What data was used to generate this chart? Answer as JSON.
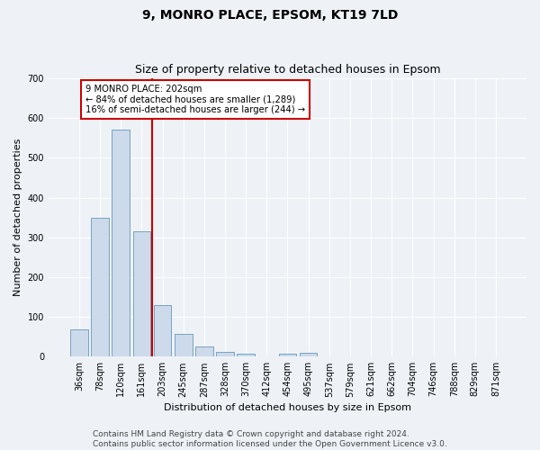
{
  "title_line1": "9, MONRO PLACE, EPSOM, KT19 7LD",
  "title_line2": "Size of property relative to detached houses in Epsom",
  "xlabel": "Distribution of detached houses by size in Epsom",
  "ylabel": "Number of detached properties",
  "categories": [
    "36sqm",
    "78sqm",
    "120sqm",
    "161sqm",
    "203sqm",
    "245sqm",
    "287sqm",
    "328sqm",
    "370sqm",
    "412sqm",
    "454sqm",
    "495sqm",
    "537sqm",
    "579sqm",
    "621sqm",
    "662sqm",
    "704sqm",
    "746sqm",
    "788sqm",
    "829sqm",
    "871sqm"
  ],
  "values": [
    68,
    350,
    570,
    315,
    130,
    57,
    25,
    13,
    7,
    0,
    8,
    10,
    0,
    0,
    0,
    0,
    0,
    0,
    0,
    0,
    0
  ],
  "bar_color": "#ccdaeb",
  "bar_edge_color": "#6699bb",
  "highlight_line_color": "#cc0000",
  "annotation_text": "9 MONRO PLACE: 202sqm\n← 84% of detached houses are smaller (1,289)\n16% of semi-detached houses are larger (244) →",
  "annotation_box_color": "#ffffff",
  "annotation_box_edge_color": "#cc0000",
  "ylim": [
    0,
    700
  ],
  "yticks": [
    0,
    100,
    200,
    300,
    400,
    500,
    600,
    700
  ],
  "footer_line1": "Contains HM Land Registry data © Crown copyright and database right 2024.",
  "footer_line2": "Contains public sector information licensed under the Open Government Licence v3.0.",
  "bg_color": "#eef2f7",
  "plot_bg_color": "#eef2f7",
  "grid_color": "#ffffff",
  "title_fontsize": 10,
  "subtitle_fontsize": 9,
  "axis_label_fontsize": 8,
  "tick_fontsize": 7,
  "footer_fontsize": 6.5
}
